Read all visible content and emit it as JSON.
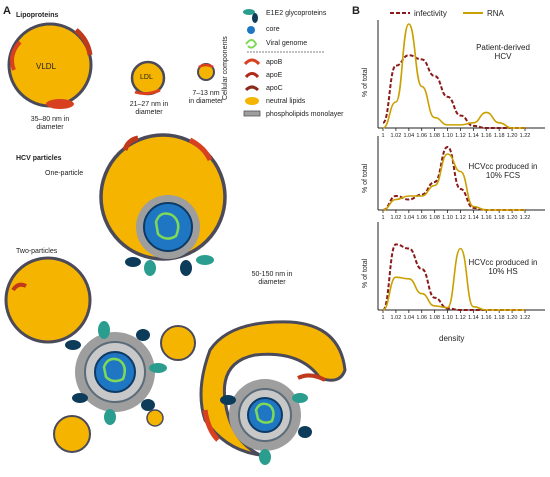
{
  "panel_a": {
    "label": "A",
    "lipoproteins_title": "Lipoproteins",
    "vldl": {
      "label": "VLDL",
      "size_line1": "35–80 nm in",
      "size_line2": "diameter"
    },
    "ldl": {
      "label": "LDL",
      "size_line1": "21–27 nm in",
      "size_line2": "diameter"
    },
    "hdl": {
      "size_line1": "7–13 nm",
      "size_line2": "in diameter"
    },
    "hcv_title": "HCV particles",
    "one_particle": "One-particle",
    "two_particles": "Two-particles",
    "hcv_size_line1": "50-150 nm in",
    "hcv_size_line2": "diameter"
  },
  "legend": {
    "group_label": "Cellular components",
    "items": [
      {
        "label": "E1E2 glycoproteins",
        "icon": "glycoprotein-icon",
        "color": "#2a9d8f"
      },
      {
        "label": "core",
        "icon": "core-icon",
        "color": "#1f77c4"
      },
      {
        "label": "Viral genome",
        "icon": "genome-icon",
        "color": "#7ed957"
      },
      {
        "label": "apoB",
        "icon": "apob-icon",
        "color": "#d8401f"
      },
      {
        "label": "apoE",
        "icon": "apoe-icon",
        "color": "#b02a1a"
      },
      {
        "label": "apoC",
        "icon": "apoc-icon",
        "color": "#8b2a1a"
      },
      {
        "label": "neutral lipids",
        "icon": "neutral-lipid-icon",
        "color": "#f5b400"
      },
      {
        "label": "phospholipids monolayer",
        "icon": "phospholipid-icon",
        "color": "#9e9e9e"
      }
    ]
  },
  "panel_b": {
    "label": "B",
    "legend_infectivity": "infectivity",
    "legend_rna": "RNA",
    "xlabel": "density",
    "ylabel": "% of total",
    "infectivity_color": "#8b1a1a",
    "rna_color": "#c9a000"
  },
  "chart_data": [
    {
      "type": "line",
      "title_line1": "Patient-derived",
      "title_line2": "HCV",
      "ylabel": "% of total",
      "x": [
        "1",
        "1.02",
        "1.04",
        "1.06",
        "1.08",
        "1.10",
        "1.12",
        "1.14",
        "1.16",
        "1.18",
        "1.20",
        "1.22"
      ],
      "series": [
        {
          "name": "infectivity",
          "values": [
            5,
            60,
            70,
            66,
            50,
            30,
            12,
            2,
            0,
            0,
            0,
            0
          ]
        },
        {
          "name": "RNA",
          "values": [
            0,
            25,
            100,
            40,
            10,
            3,
            3,
            5,
            15,
            5,
            0,
            0
          ]
        }
      ]
    },
    {
      "type": "line",
      "title_line1": "HCVcc produced in",
      "title_line2": "10% FCS",
      "ylabel": "% of total",
      "x": [
        "1",
        "1.02",
        "1.04",
        "1.06",
        "1.08",
        "1.10",
        "1.12",
        "1.14",
        "1.16",
        "1.18",
        "1.20",
        "1.22"
      ],
      "series": [
        {
          "name": "infectivity",
          "values": [
            0,
            20,
            15,
            22,
            40,
            90,
            30,
            3,
            0,
            0,
            0,
            0
          ]
        },
        {
          "name": "RNA",
          "values": [
            0,
            15,
            20,
            20,
            35,
            80,
            55,
            5,
            0,
            0,
            0,
            0
          ]
        }
      ]
    },
    {
      "type": "line",
      "title_line1": "HCVcc produced in",
      "title_line2": "10% HS",
      "ylabel": "% of total",
      "x": [
        "1",
        "1.02",
        "1.04",
        "1.06",
        "1.08",
        "1.10",
        "1.12",
        "1.14",
        "1.16",
        "1.18",
        "1.20",
        "1.22"
      ],
      "series": [
        {
          "name": "infectivity",
          "values": [
            0,
            80,
            75,
            50,
            15,
            2,
            0,
            0,
            0,
            0,
            0,
            0
          ]
        },
        {
          "name": "RNA",
          "values": [
            0,
            40,
            38,
            20,
            5,
            3,
            75,
            4,
            0,
            0,
            0,
            0
          ]
        }
      ]
    }
  ]
}
